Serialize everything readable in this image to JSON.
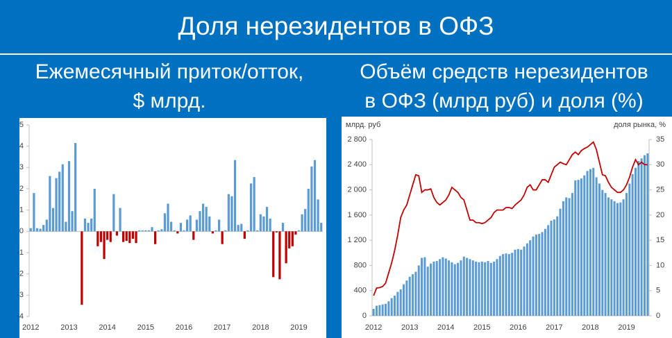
{
  "header": {
    "title": "Доля нерезидентов в ОФЗ"
  },
  "chart_data": [
    {
      "type": "bar",
      "title": [
        "Ежемесячный приток/отток,",
        "$ млрд."
      ],
      "categories": [
        "2012",
        null,
        null,
        null,
        null,
        null,
        null,
        null,
        null,
        null,
        null,
        null,
        "2013",
        null,
        null,
        null,
        null,
        null,
        null,
        null,
        null,
        null,
        null,
        null,
        "2014",
        null,
        null,
        null,
        null,
        null,
        null,
        null,
        null,
        null,
        null,
        null,
        "2015",
        null,
        null,
        null,
        null,
        null,
        null,
        null,
        null,
        null,
        null,
        null,
        "2016",
        null,
        null,
        null,
        null,
        null,
        null,
        null,
        null,
        null,
        null,
        null,
        "2017",
        null,
        null,
        null,
        null,
        null,
        null,
        null,
        null,
        null,
        null,
        null,
        "2018",
        null,
        null,
        null,
        null,
        null,
        null,
        null,
        null,
        null,
        null,
        null,
        "2019",
        null,
        null,
        null,
        null,
        null,
        null,
        null
      ],
      "series": [
        {
          "color": "#5b9bd5",
          "negative_color": "#c00000",
          "type": "bar",
          "values": [
            0.15,
            1.8,
            0.15,
            0.12,
            0.3,
            0.55,
            2.6,
            1.1,
            2.5,
            2.8,
            3.15,
            0.45,
            3.3,
            0.95,
            4.15,
            0,
            -3.45,
            0.6,
            0.4,
            0.6,
            2.0,
            -0.7,
            -0.5,
            -1.3,
            -0.4,
            -0.5,
            1.75,
            -0.2,
            1.1,
            -0.5,
            -0.45,
            -0.55,
            -0.35,
            -0.55,
            0.05,
            0.05,
            0.05,
            0.05,
            0.2,
            -0.6,
            0.05,
            0.1,
            0.85,
            1.3,
            0.45,
            0.05,
            -0.1,
            0.4,
            0.05,
            0.55,
            0.75,
            -0.4,
            0.55,
            0.95,
            1.3,
            1.15,
            0.7,
            -0.1,
            0.05,
            0.55,
            -0.6,
            0.05,
            1.75,
            1.65,
            3.35,
            0.3,
            0.35,
            -0.35,
            0.05,
            2.25,
            2.55,
            0.05,
            0.8,
            0.7,
            1.15,
            0.6,
            -2.15,
            -0.05,
            -2.25,
            0.4,
            -1.5,
            -0.8,
            -0.7,
            -0.15,
            0.05,
            0.8,
            1.05,
            2.0,
            3.05,
            3.35,
            1.5,
            0.4
          ]
        }
      ],
      "ylim": [
        -4,
        5
      ],
      "yticks": [
        -4,
        -3,
        -2,
        -1,
        0,
        1,
        2,
        3,
        4,
        5
      ]
    },
    {
      "type": "combo",
      "title": [
        "Объём средств нерезидентов",
        "в ОФЗ (млрд руб) и доля (%)"
      ],
      "ylabel": "млрд. руб",
      "y2label": "доля рынка, %",
      "categories": [
        "2012",
        null,
        null,
        null,
        null,
        null,
        null,
        null,
        null,
        null,
        null,
        null,
        "2013",
        null,
        null,
        null,
        null,
        null,
        null,
        null,
        null,
        null,
        null,
        null,
        "2014",
        null,
        null,
        null,
        null,
        null,
        null,
        null,
        null,
        null,
        null,
        null,
        "2015",
        null,
        null,
        null,
        null,
        null,
        null,
        null,
        null,
        null,
        null,
        null,
        "2016",
        null,
        null,
        null,
        null,
        null,
        null,
        null,
        null,
        null,
        null,
        null,
        "2017",
        null,
        null,
        null,
        null,
        null,
        null,
        null,
        null,
        null,
        null,
        null,
        "2018",
        null,
        null,
        null,
        null,
        null,
        null,
        null,
        null,
        null,
        null,
        null,
        "2019",
        null,
        null,
        null,
        null,
        null,
        null,
        null
      ],
      "series": [
        {
          "type": "bar",
          "color": "#5b9bd5",
          "values": [
            110,
            160,
            170,
            180,
            190,
            230,
            280,
            320,
            380,
            420,
            500,
            560,
            620,
            660,
            700,
            800,
            920,
            930,
            780,
            830,
            860,
            870,
            900,
            930,
            910,
            880,
            850,
            820,
            840,
            880,
            940,
            920,
            900,
            880,
            860,
            850,
            860,
            850,
            870,
            840,
            860,
            900,
            950,
            980,
            990,
            980,
            1000,
            1050,
            1060,
            1050,
            1100,
            1150,
            1200,
            1260,
            1290,
            1300,
            1330,
            1380,
            1440,
            1510,
            1530,
            1580,
            1700,
            1820,
            1880,
            1870,
            1950,
            2150,
            2160,
            2180,
            2230,
            2300,
            2330,
            2350,
            2200,
            2100,
            2000,
            1950,
            1880,
            1850,
            1820,
            1790,
            1800,
            1850,
            1950,
            2100,
            2250,
            2350,
            2460,
            2500,
            2550,
            2580
          ]
        },
        {
          "type": "line",
          "axis": "y2",
          "color": "#c00000",
          "values": [
            4,
            5.5,
            5.6,
            5.8,
            6.5,
            8.5,
            10.5,
            13,
            16,
            19.5,
            21,
            22,
            24,
            26,
            28,
            27.8,
            24.5,
            25,
            25,
            25.2,
            23.5,
            22.5,
            22,
            22.5,
            23,
            24,
            25.5,
            25,
            24.5,
            23.5,
            23,
            21,
            19,
            19,
            18.5,
            18.5,
            18.3,
            18.5,
            19,
            19.5,
            20.5,
            21,
            21,
            21,
            21.5,
            21.5,
            21.3,
            22,
            22.5,
            23,
            24,
            25.5,
            26,
            25,
            25,
            26,
            27,
            27,
            26.5,
            28,
            29.5,
            30,
            30.5,
            30.2,
            30,
            31,
            32,
            32.5,
            32,
            32.8,
            33.2,
            33.5,
            34,
            34.5,
            33,
            30.5,
            28,
            27.8,
            26.5,
            25.5,
            25,
            24.5,
            24.5,
            25,
            26,
            27.5,
            29.5,
            31,
            30,
            30.5,
            30,
            30
          ]
        }
      ],
      "ylim": [
        0,
        2800
      ],
      "yticks": [
        0,
        400,
        800,
        {
          "value": 1200,
          "label": "1 200"
        },
        {
          "value": 1600,
          "label": "1 600"
        },
        {
          "value": 2000,
          "label": "2 000"
        },
        {
          "value": 2400,
          "label": "2 400"
        },
        {
          "value": 2800,
          "label": "2 800"
        }
      ],
      "y2lim": [
        0,
        35
      ],
      "y2ticks": [
        0,
        5,
        10,
        15,
        20,
        25,
        30,
        35
      ]
    }
  ]
}
